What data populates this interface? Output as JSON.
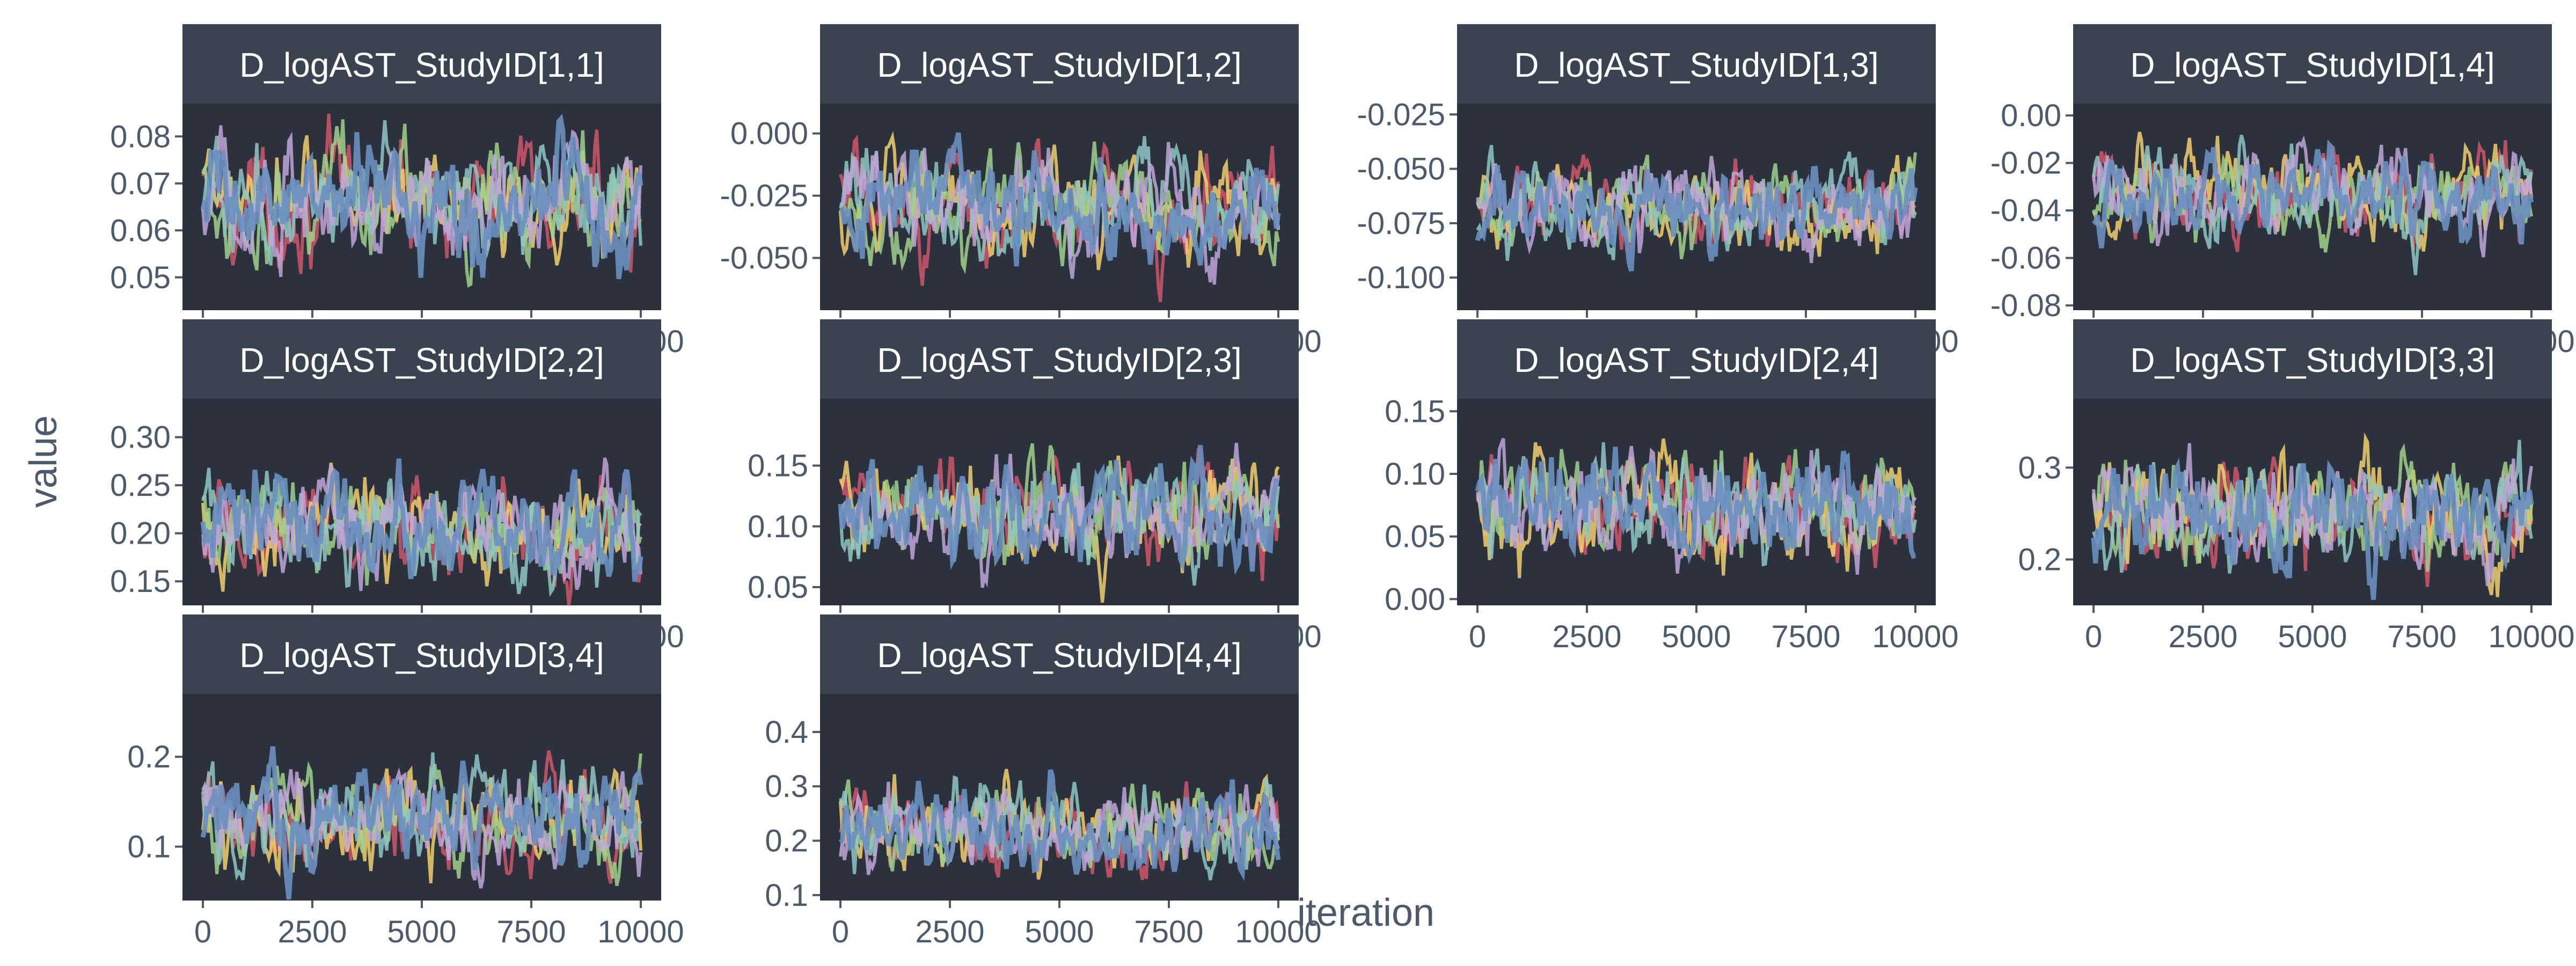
{
  "figure": {
    "xlabel": "iteration",
    "ylabel": "value",
    "background": "#ffffff",
    "panel_background": "#2b323d",
    "strip_background": "#3b4350",
    "strip_text_color": "#ffffff",
    "axis_text_color": "#4d5a6b",
    "chain_colors": [
      "#d1566b",
      "#f2cf6c",
      "#9fd08a",
      "#8ec5c2",
      "#bfa6d8",
      "#6a8fc0"
    ],
    "top_chain_color": "#6a8fc0"
  },
  "chart_data": [
    {
      "type": "line",
      "title": "D_logAST_StudyID[1,1]",
      "x_ticks": [
        0,
        2500,
        5000,
        7500,
        10000
      ],
      "xlim": [
        0,
        10000
      ],
      "ylim": [
        0.043,
        0.087
      ],
      "y_ticks": [
        0.05,
        0.06,
        0.07,
        0.08
      ],
      "y_tick_labels": [
        "0.05",
        "0.06",
        "0.07",
        "0.08"
      ],
      "center": 0.066,
      "spread": 0.008
    },
    {
      "type": "line",
      "title": "D_logAST_StudyID[1,2]",
      "x_ticks": [
        0,
        2500,
        5000,
        7500,
        10000
      ],
      "xlim": [
        0,
        10000
      ],
      "ylim": [
        -0.071,
        0.012
      ],
      "y_ticks": [
        0.0,
        -0.025,
        -0.05
      ],
      "y_tick_labels": [
        "0.000",
        "-0.025",
        "-0.050"
      ],
      "center": -0.03,
      "spread": 0.014
    },
    {
      "type": "line",
      "title": "D_logAST_StudyID[1,3]",
      "x_ticks": [
        0,
        2500,
        5000,
        7500,
        10000
      ],
      "xlim": [
        0,
        10000
      ],
      "ylim": [
        -0.115,
        -0.02
      ],
      "y_ticks": [
        -0.025,
        -0.05,
        -0.075,
        -0.1
      ],
      "y_tick_labels": [
        "-0.025",
        "-0.050",
        "-0.075",
        "-0.100"
      ],
      "center": -0.068,
      "spread": 0.013
    },
    {
      "type": "line",
      "title": "D_logAST_StudyID[1,4]",
      "x_ticks": [
        0,
        2500,
        5000,
        7500,
        10000
      ],
      "xlim": [
        0,
        10000
      ],
      "ylim": [
        -0.082,
        0.005
      ],
      "y_ticks": [
        0.0,
        -0.02,
        -0.04,
        -0.06,
        -0.08
      ],
      "y_tick_labels": [
        "0.00",
        "-0.02",
        "-0.04",
        "-0.06",
        "-0.08"
      ],
      "center": -0.033,
      "spread": 0.012
    },
    {
      "type": "line",
      "title": "D_logAST_StudyID[2,2]",
      "x_ticks": [
        0,
        2500,
        5000,
        7500,
        10000
      ],
      "xlim": [
        0,
        10000
      ],
      "ylim": [
        0.125,
        0.34
      ],
      "y_ticks": [
        0.15,
        0.2,
        0.25,
        0.3
      ],
      "y_tick_labels": [
        "0.15",
        "0.20",
        "0.25",
        "0.30"
      ],
      "center": 0.205,
      "spread": 0.035
    },
    {
      "type": "line",
      "title": "D_logAST_StudyID[2,3]",
      "x_ticks": [
        0,
        2500,
        5000,
        7500,
        10000
      ],
      "xlim": [
        0,
        10000
      ],
      "ylim": [
        0.035,
        0.205
      ],
      "y_ticks": [
        0.05,
        0.1,
        0.15
      ],
      "y_tick_labels": [
        "0.05",
        "0.10",
        "0.15"
      ],
      "center": 0.11,
      "spread": 0.028
    },
    {
      "type": "line",
      "title": "D_logAST_StudyID[2,4]",
      "x_ticks": [
        0,
        2500,
        5000,
        7500,
        10000
      ],
      "xlim": [
        0,
        10000
      ],
      "ylim": [
        -0.005,
        0.16
      ],
      "y_ticks": [
        0.0,
        0.05,
        0.1,
        0.15
      ],
      "y_tick_labels": [
        "0.00",
        "0.05",
        "0.10",
        "0.15"
      ],
      "center": 0.075,
      "spread": 0.028
    },
    {
      "type": "line",
      "title": "D_logAST_StudyID[3,3]",
      "x_ticks": [
        0,
        2500,
        5000,
        7500,
        10000
      ],
      "xlim": [
        0,
        10000
      ],
      "ylim": [
        0.15,
        0.375
      ],
      "y_ticks": [
        0.2,
        0.3
      ],
      "y_tick_labels": [
        "0.2",
        "0.3"
      ],
      "center": 0.25,
      "spread": 0.04
    },
    {
      "type": "line",
      "title": "D_logAST_StudyID[3,4]",
      "x_ticks": [
        0,
        2500,
        5000,
        7500,
        10000
      ],
      "xlim": [
        0,
        10000
      ],
      "ylim": [
        0.04,
        0.27
      ],
      "y_ticks": [
        0.1,
        0.2
      ],
      "y_tick_labels": [
        "0.1",
        "0.2"
      ],
      "center": 0.13,
      "spread": 0.035
    },
    {
      "type": "line",
      "title": "D_logAST_StudyID[4,4]",
      "x_ticks": [
        0,
        2500,
        5000,
        7500,
        10000
      ],
      "xlim": [
        0,
        10000
      ],
      "ylim": [
        0.09,
        0.47
      ],
      "y_ticks": [
        0.1,
        0.2,
        0.3,
        0.4
      ],
      "y_tick_labels": [
        "0.1",
        "0.2",
        "0.3",
        "0.4"
      ],
      "center": 0.22,
      "spread": 0.05
    }
  ]
}
